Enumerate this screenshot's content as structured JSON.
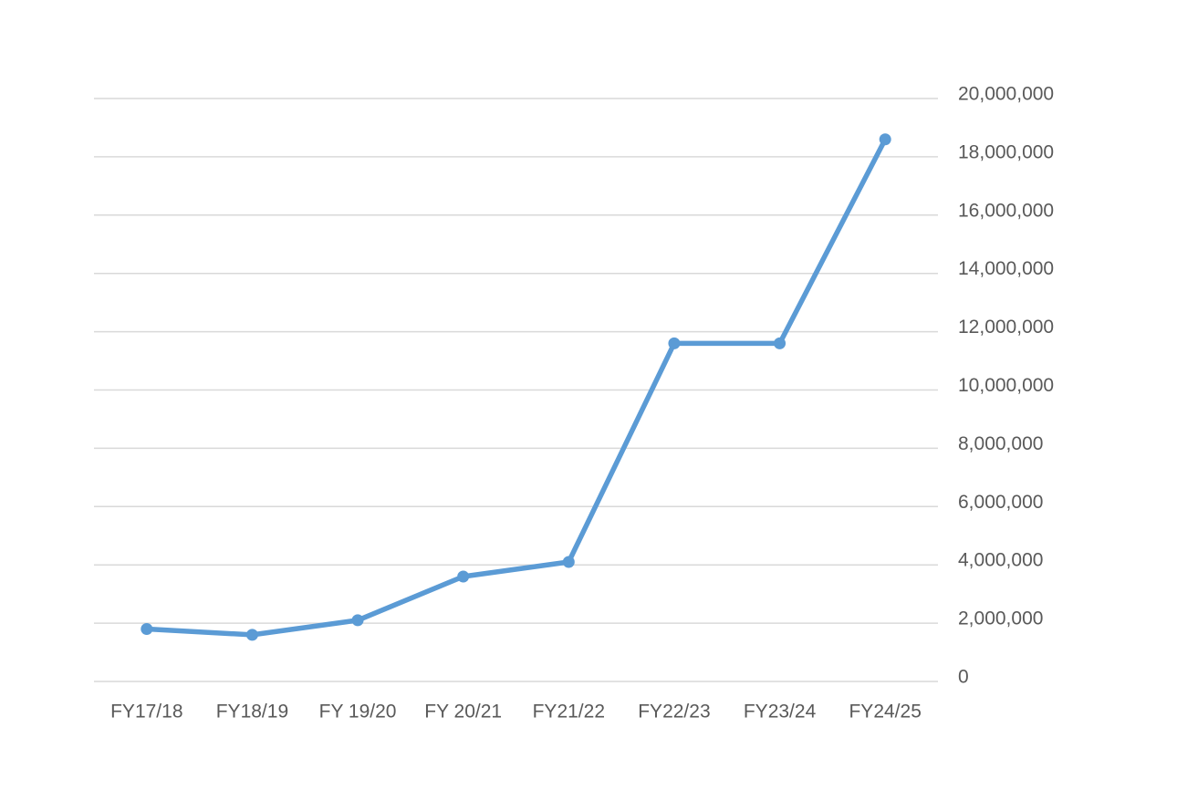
{
  "chart_data": {
    "type": "line",
    "categories": [
      "FY17/18",
      "FY18/19",
      "FY 19/20",
      "FY 20/21",
      "FY21/22",
      "FY22/23",
      "FY23/24",
      "FY24/25"
    ],
    "series": [
      {
        "color": "#5b9bd5",
        "values": [
          1800000,
          1600000,
          2100000,
          3600000,
          4100000,
          11600000,
          11600000,
          18600000
        ]
      }
    ],
    "ylim": [
      0,
      20000000
    ],
    "yticks": [
      0,
      {
        "value": 2000000,
        "label": "2,000,000"
      },
      {
        "value": 4000000,
        "label": "4,000,000"
      },
      {
        "value": 6000000,
        "label": "6,000,000"
      },
      {
        "value": 8000000,
        "label": "8,000,000"
      },
      {
        "value": 10000000,
        "label": "10,000,000"
      },
      {
        "value": 12000000,
        "label": "12,000,000"
      },
      {
        "value": 14000000,
        "label": "14,000,000"
      },
      {
        "value": 16000000,
        "label": "16,000,000"
      },
      {
        "value": 18000000,
        "label": "18,000,000"
      },
      {
        "value": 20000000,
        "label": "20,000,000"
      }
    ],
    "grid": true,
    "y_axis_side": "right"
  }
}
